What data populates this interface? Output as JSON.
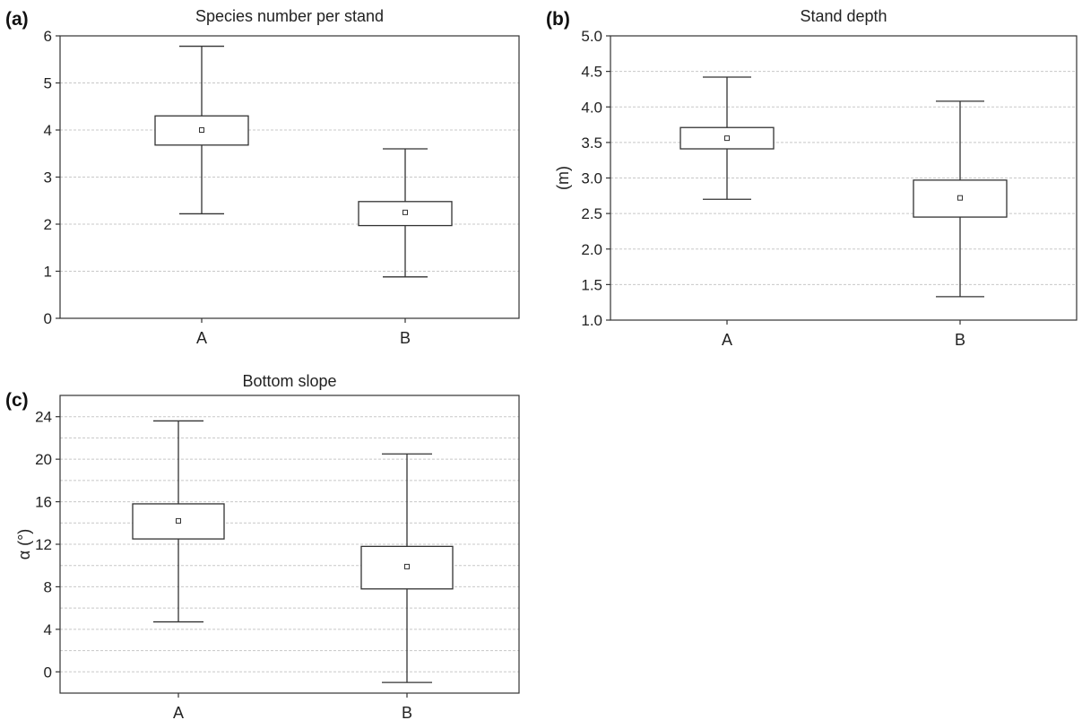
{
  "chart_data": [
    {
      "type": "box",
      "panel_label": "(a)",
      "title": "Species number per stand",
      "xlabel": "",
      "ylabel": "",
      "ylim": [
        0,
        6
      ],
      "yticks": [
        0,
        1,
        2,
        3,
        4,
        5,
        6
      ],
      "ytick_labels": [
        "0",
        "1",
        "2",
        "3",
        "4",
        "5",
        "6"
      ],
      "grid_lines": [
        1,
        2,
        3,
        4,
        5
      ],
      "categories": [
        "A",
        "B"
      ],
      "boxes": [
        {
          "category": "A",
          "whisker_low": 2.22,
          "q1": 3.68,
          "mean": 4.0,
          "q3": 4.3,
          "whisker_high": 5.78
        },
        {
          "category": "B",
          "whisker_low": 0.88,
          "q1": 1.97,
          "mean": 2.25,
          "q3": 2.48,
          "whisker_high": 3.6
        }
      ]
    },
    {
      "type": "box",
      "panel_label": "(b)",
      "title": "Stand depth",
      "xlabel": "",
      "ylabel": "(m)",
      "ylim": [
        1.0,
        5.0
      ],
      "yticks": [
        1.0,
        1.5,
        2.0,
        2.5,
        3.0,
        3.5,
        4.0,
        4.5,
        5.0
      ],
      "ytick_labels": [
        "1.0",
        "1.5",
        "2.0",
        "2.5",
        "3.0",
        "3.5",
        "4.0",
        "4.5",
        "5.0"
      ],
      "grid_lines": [
        1.5,
        2.0,
        2.5,
        3.0,
        3.5,
        4.0,
        4.5
      ],
      "categories": [
        "A",
        "B"
      ],
      "boxes": [
        {
          "category": "A",
          "whisker_low": 2.7,
          "q1": 3.41,
          "mean": 3.56,
          "q3": 3.71,
          "whisker_high": 4.42
        },
        {
          "category": "B",
          "whisker_low": 1.33,
          "q1": 2.45,
          "mean": 2.72,
          "q3": 2.97,
          "whisker_high": 4.08
        }
      ]
    },
    {
      "type": "box",
      "panel_label": "(c)",
      "title": "Bottom slope",
      "xlabel": "",
      "ylabel": "α (°)",
      "ylim": [
        -2,
        26
      ],
      "yticks": [
        0,
        4,
        8,
        12,
        16,
        20,
        24
      ],
      "ytick_labels": [
        "0",
        "4",
        "8",
        "12",
        "16",
        "20",
        "24"
      ],
      "grid_lines": [
        0,
        2,
        4,
        6,
        8,
        10,
        12,
        14,
        16,
        18,
        20,
        22,
        24
      ],
      "categories": [
        "A",
        "B"
      ],
      "boxes": [
        {
          "category": "A",
          "whisker_low": 4.7,
          "q1": 12.5,
          "mean": 14.2,
          "q3": 15.8,
          "whisker_high": 23.6
        },
        {
          "category": "B",
          "whisker_low": -1.0,
          "q1": 7.8,
          "mean": 9.9,
          "q3": 11.8,
          "whisker_high": 20.5
        }
      ]
    }
  ]
}
